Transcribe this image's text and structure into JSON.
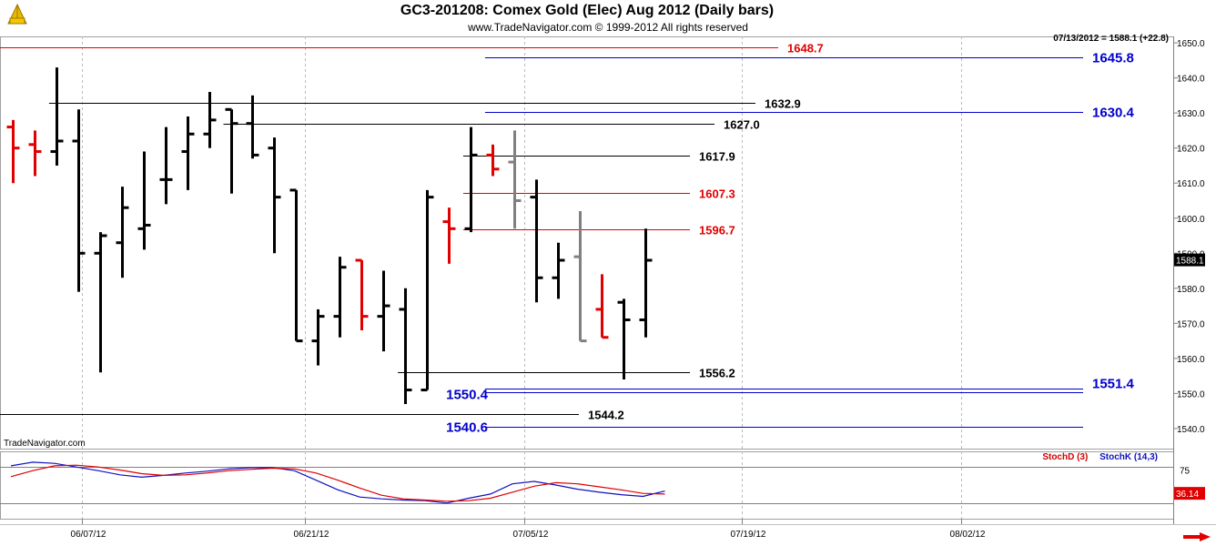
{
  "header": {
    "title": "GC3-201208:  Comex Gold (Elec) Aug 2012  (Daily bars)",
    "copyright": "www.TradeNavigator.com © 1999-2012 All rights reserved",
    "quote": "07/13/2012 = 1588.1 (+22.8)",
    "watermark": "TradeNavigator.com"
  },
  "colors": {
    "up_bar": "#000000",
    "down_bar": "#e00000",
    "unchanged_bar": "#808080",
    "resistance": "#e00000",
    "support_blue": "#0000cc",
    "pivot_black": "#000000",
    "stoch_d": "#e00000",
    "stoch_k": "#1010c0",
    "last_price_box": "#000000",
    "stoch_box": "#e00000"
  },
  "chart_data": [
    {
      "type": "ohlc",
      "title": "GC3-201208:  Comex Gold (Elec) Aug 2012  (Daily bars)",
      "ylim": [
        1533,
        1655
      ],
      "y_ticks": [
        "1540.0",
        "1550.0",
        "1560.0",
        "1570.0",
        "1580.0",
        "1590.0",
        "1600.0",
        "1610.0",
        "1620.0",
        "1630.0",
        "1640.0",
        "1650.0"
      ],
      "x_ticks": [
        "06/07/12",
        "06/21/12",
        "07/05/12",
        "07/19/12",
        "08/02/12"
      ],
      "last_price": "1588.1",
      "bars": [
        {
          "date": "05/31",
          "o": 1626,
          "h": 1628,
          "l": 1610,
          "c": 1620,
          "col": "down"
        },
        {
          "date": "06/01",
          "o": 1621,
          "h": 1625,
          "l": 1612,
          "c": 1619,
          "col": "down"
        },
        {
          "date": "06/04",
          "o": 1619,
          "h": 1643,
          "l": 1615,
          "c": 1622,
          "col": "up"
        },
        {
          "date": "06/05",
          "o": 1622,
          "h": 1631,
          "l": 1579,
          "c": 1590,
          "col": "up"
        },
        {
          "date": "06/06",
          "o": 1590,
          "h": 1596,
          "l": 1556,
          "c": 1595,
          "col": "up"
        },
        {
          "date": "06/07",
          "o": 1593,
          "h": 1609,
          "l": 1583,
          "c": 1603,
          "col": "up"
        },
        {
          "date": "06/08",
          "o": 1597,
          "h": 1619,
          "l": 1591,
          "c": 1598,
          "col": "up"
        },
        {
          "date": "06/11",
          "o": 1611,
          "h": 1626,
          "l": 1604,
          "c": 1611,
          "col": "up"
        },
        {
          "date": "06/12",
          "o": 1619,
          "h": 1629,
          "l": 1608,
          "c": 1624,
          "col": "up"
        },
        {
          "date": "06/13",
          "o": 1624,
          "h": 1636,
          "l": 1620,
          "c": 1628,
          "col": "up"
        },
        {
          "date": "06/14",
          "o": 1631,
          "h": 1631,
          "l": 1607,
          "c": 1627,
          "col": "up"
        },
        {
          "date": "06/15",
          "o": 1627,
          "h": 1635,
          "l": 1617,
          "c": 1618,
          "col": "up"
        },
        {
          "date": "06/18",
          "o": 1620,
          "h": 1623,
          "l": 1590,
          "c": 1606,
          "col": "up"
        },
        {
          "date": "06/19",
          "o": 1608,
          "h": 1608,
          "l": 1565,
          "c": 1565,
          "col": "up"
        },
        {
          "date": "06/20",
          "o": 1565,
          "h": 1574,
          "l": 1558,
          "c": 1572,
          "col": "up"
        },
        {
          "date": "06/21",
          "o": 1572,
          "h": 1589,
          "l": 1566,
          "c": 1586,
          "col": "up"
        },
        {
          "date": "06/22",
          "o": 1588,
          "h": 1588,
          "l": 1568,
          "c": 1572,
          "col": "down"
        },
        {
          "date": "06/25",
          "o": 1572,
          "h": 1585,
          "l": 1562,
          "c": 1575,
          "col": "up"
        },
        {
          "date": "06/26",
          "o": 1574,
          "h": 1580,
          "l": 1547,
          "c": 1551,
          "col": "up"
        },
        {
          "date": "06/27",
          "o": 1551,
          "h": 1608,
          "l": 1551,
          "c": 1606,
          "col": "up"
        },
        {
          "date": "06/28",
          "o": 1599,
          "h": 1603,
          "l": 1587,
          "c": 1597,
          "col": "down"
        },
        {
          "date": "06/29",
          "o": 1597,
          "h": 1626,
          "l": 1596,
          "c": 1618,
          "col": "up"
        },
        {
          "date": "07/02",
          "o": 1618,
          "h": 1621,
          "l": 1612,
          "c": 1614,
          "col": "down"
        },
        {
          "date": "07/03",
          "o": 1616,
          "h": 1625,
          "l": 1597,
          "c": 1605,
          "col": "unch"
        },
        {
          "date": "07/05",
          "o": 1606,
          "h": 1611,
          "l": 1576,
          "c": 1583,
          "col": "up"
        },
        {
          "date": "07/06",
          "o": 1583,
          "h": 1593,
          "l": 1577,
          "c": 1588,
          "col": "up"
        },
        {
          "date": "07/09",
          "o": 1589,
          "h": 1602,
          "l": 1565,
          "c": 1565,
          "col": "unch"
        },
        {
          "date": "07/10",
          "o": 1574,
          "h": 1584,
          "l": 1566,
          "c": 1566,
          "col": "down"
        },
        {
          "date": "07/11",
          "o": 1576,
          "h": 1577,
          "l": 1554,
          "c": 1571,
          "col": "up"
        },
        {
          "date": "07/12",
          "o": 1571,
          "h": 1597,
          "l": 1566,
          "c": 1588,
          "col": "up"
        }
      ],
      "levels": [
        {
          "label": "1648.7",
          "value": 1648.7,
          "color": "resistance",
          "start": "left",
          "end": "mid"
        },
        {
          "label": "1645.8",
          "value": 1645.8,
          "color": "support_blue",
          "start": "07/02",
          "end": "right"
        },
        {
          "label": "1632.9",
          "value": 1632.9,
          "color": "pivot_black",
          "start": "06/04",
          "end": "mid2"
        },
        {
          "label": "1630.4",
          "value": 1630.4,
          "color": "support_blue",
          "start": "07/02",
          "end": "right"
        },
        {
          "label": "1627.0",
          "value": 1627.0,
          "color": "pivot_black",
          "start": "06/14",
          "end": "07/19"
        },
        {
          "label": "1617.9",
          "value": 1617.9,
          "color": "pivot_black",
          "start": "06/29",
          "end": "07/17"
        },
        {
          "label": "1607.3",
          "value": 1607.3,
          "color": "resistance",
          "start": "06/29",
          "end": "07/17"
        },
        {
          "label": "1596.7",
          "value": 1596.7,
          "color": "resistance",
          "start": "06/29",
          "end": "07/17"
        },
        {
          "label": "1556.2",
          "value": 1556.2,
          "color": "pivot_black",
          "start": "06/26",
          "end": "07/17"
        },
        {
          "label": "1551.4",
          "value": 1551.4,
          "color": "support_blue",
          "start": "07/02",
          "end": "right"
        },
        {
          "label": "1550.4",
          "value": 1550.4,
          "color": "support_blue",
          "start": "07/02",
          "end": "right"
        },
        {
          "label": "1544.2",
          "value": 1544.2,
          "color": "pivot_black",
          "start": "left",
          "end": "07/13"
        },
        {
          "label": "1540.6",
          "value": 1540.6,
          "color": "support_blue",
          "start": "07/02",
          "end": "right"
        }
      ]
    },
    {
      "type": "line",
      "title": "",
      "legend": [
        "StochD (3)",
        "StochK (14,3)"
      ],
      "ylim": [
        0,
        100
      ],
      "y_ticks": [
        "75"
      ],
      "h_lines": [
        80,
        20
      ],
      "last_value": "36.14",
      "series": [
        {
          "name": "StochK (14,3)",
          "color": "stoch_k",
          "values": [
            82,
            88,
            86,
            80,
            74,
            67,
            63,
            66,
            70,
            73,
            77,
            79,
            79,
            74,
            58,
            42,
            30,
            27,
            25,
            24,
            20,
            28,
            35,
            52,
            56,
            50,
            43,
            38,
            34,
            31,
            40
          ]
        },
        {
          "name": "StochD (3)",
          "color": "stoch_d",
          "values": [
            64,
            74,
            82,
            83,
            80,
            75,
            69,
            66,
            67,
            70,
            74,
            76,
            78,
            77,
            70,
            58,
            45,
            33,
            27,
            25,
            23,
            24,
            28,
            38,
            48,
            54,
            52,
            47,
            42,
            36,
            35
          ]
        }
      ]
    }
  ]
}
